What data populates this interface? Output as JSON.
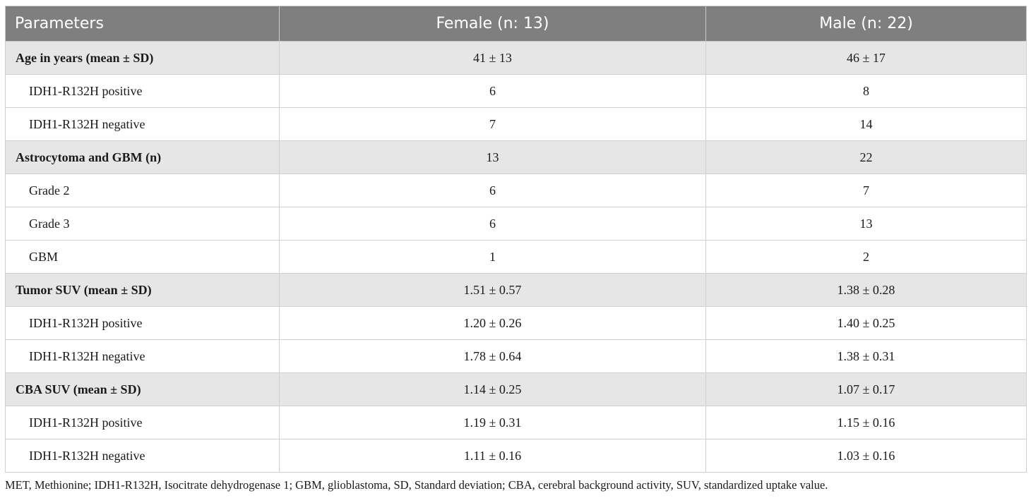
{
  "table": {
    "headers": [
      "Parameters",
      "Female (n: 13)",
      "Male (n: 22)"
    ],
    "rows": [
      {
        "kind": "section",
        "cells": [
          "Age in years (mean ± SD)",
          "41 ± 13",
          "46 ± 17"
        ]
      },
      {
        "kind": "sub",
        "cells": [
          "IDH1-R132H positive",
          "6",
          "8"
        ]
      },
      {
        "kind": "sub",
        "cells": [
          "IDH1-R132H negative",
          "7",
          "14"
        ]
      },
      {
        "kind": "section",
        "cells": [
          "Astrocytoma and GBM (n)",
          "13",
          "22"
        ]
      },
      {
        "kind": "sub",
        "cells": [
          "Grade 2",
          "6",
          "7"
        ]
      },
      {
        "kind": "sub",
        "cells": [
          "Grade 3",
          "6",
          "13"
        ]
      },
      {
        "kind": "sub",
        "cells": [
          "GBM",
          "1",
          "2"
        ]
      },
      {
        "kind": "section",
        "cells": [
          "Tumor SUV (mean ± SD)",
          "1.51 ± 0.57",
          "1.38 ± 0.28"
        ]
      },
      {
        "kind": "sub",
        "cells": [
          "IDH1-R132H positive",
          "1.20 ± 0.26",
          "1.40 ± 0.25"
        ]
      },
      {
        "kind": "sub",
        "cells": [
          "IDH1-R132H negative",
          "1.78 ± 0.64",
          "1.38 ± 0.31"
        ]
      },
      {
        "kind": "section",
        "cells": [
          "CBA SUV (mean ± SD)",
          "1.14 ± 0.25",
          "1.07 ± 0.17"
        ]
      },
      {
        "kind": "sub",
        "cells": [
          "IDH1-R132H positive",
          "1.19 ± 0.31",
          "1.15 ± 0.16"
        ]
      },
      {
        "kind": "sub",
        "cells": [
          "IDH1-R132H negative",
          "1.11 ± 0.16",
          "1.03 ± 0.16"
        ]
      }
    ]
  },
  "footnote": "MET, Methionine; IDH1-R132H, Isocitrate dehydrogenase 1; GBM, glioblastoma, SD, Standard deviation; CBA, cerebral background activity, SUV, standardized uptake value.",
  "colors": {
    "header_bg": "#7f7f7f",
    "header_text": "#ffffff",
    "section_bg": "#e6e6e6",
    "border": "#d0d0d0"
  }
}
